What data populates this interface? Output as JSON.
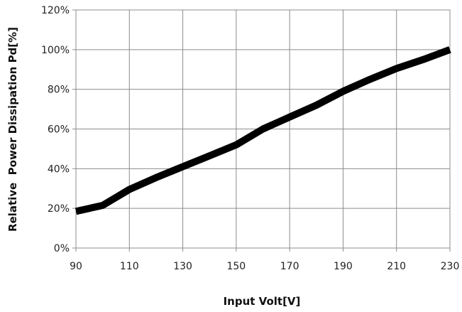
{
  "chart_data": {
    "type": "line",
    "xlabel": "Input Volt[V]",
    "ylabel": "Relative  Power Dissipation Pd[%]",
    "xlim": [
      90,
      230
    ],
    "ylim": [
      0,
      120
    ],
    "x_ticks": [
      "90",
      "110",
      "130",
      "150",
      "170",
      "190",
      "210",
      "230"
    ],
    "y_ticks": [
      "0%",
      "20%",
      "40%",
      "60%",
      "80%",
      "100%",
      "120%"
    ],
    "grid": true,
    "series": [
      {
        "x": [
          90,
          100,
          110,
          120,
          130,
          140,
          150,
          160,
          170,
          180,
          190,
          200,
          210,
          220,
          230
        ],
        "values": [
          18.5,
          21.5,
          29.5,
          35.5,
          41,
          46.5,
          52,
          60,
          66,
          72,
          79,
          85,
          90.5,
          95,
          100
        ],
        "color": "#000000"
      }
    ]
  }
}
